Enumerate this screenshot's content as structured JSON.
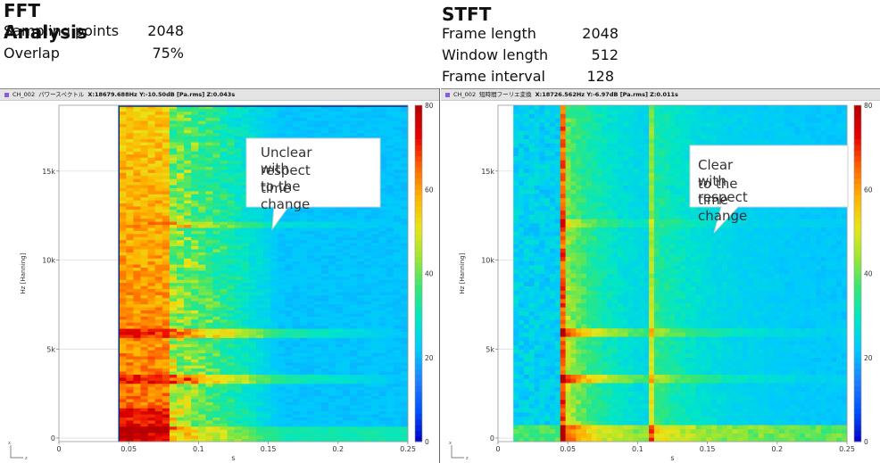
{
  "left_section": {
    "title": "FFT Analysis",
    "params": [
      {
        "label": "Sampling points",
        "value": "2048"
      },
      {
        "label": "Overlap",
        "value": "75%"
      }
    ]
  },
  "right_section": {
    "title": "STFT",
    "params": [
      {
        "label": "Frame length",
        "value": "2048"
      },
      {
        "label": "Window length",
        "value": "512"
      },
      {
        "label": "Frame interval",
        "value": "128"
      }
    ]
  },
  "panels": [
    {
      "channel": "CH_002",
      "analysis": "パワースペクトル",
      "cursor": "X:18679.688Hz Y:-10.50dB [Pa.rms] Z:0.043s",
      "callout": [
        "Unclear with",
        "respect to the",
        "time change"
      ]
    },
    {
      "channel": "CH_002",
      "analysis": "短時間フーリエ変換",
      "cursor": "X:18726.562Hz Y:-6.97dB [Pa.rms] Z:0.011s",
      "callout": [
        "Clear with respect",
        "to the time change"
      ]
    }
  ],
  "colors": {
    "header_bg": "#e4e4e4",
    "channel_marker": "#8a5cd6",
    "plot_background": "#1f7fff",
    "colormap": [
      "#0000c8",
      "#0050ff",
      "#1f7fff",
      "#00c8ff",
      "#00e6c8",
      "#32e678",
      "#9be632",
      "#e6e619",
      "#ffb400",
      "#ff6400",
      "#e60000",
      "#b40000"
    ]
  },
  "chart_data": [
    {
      "type": "heatmap",
      "method": "FFT (Hanning)",
      "xlabel": "s",
      "ylabel": "Hz [Hanning]",
      "zlabel": "",
      "x_ticks": [
        "0",
        "0.05",
        "0.1",
        "0.15",
        "0.2",
        "0.25"
      ],
      "y_ticks": [
        "0",
        "5k",
        "10k",
        "15k"
      ],
      "z_ticks": [
        "0",
        "20",
        "40",
        "60",
        "80"
      ],
      "xlim": [
        0,
        0.25
      ],
      "ylim": [
        -200,
        18700
      ],
      "zlim": [
        0,
        80
      ],
      "data_xlim": [
        0.043,
        0.25
      ],
      "legend": "colorbar-right",
      "strong_band_s": [
        0.043,
        0.08
      ],
      "resonance_lines_hz": [
        3400,
        5900,
        12000
      ],
      "decay_end_s": 0.16,
      "peak_level": 68,
      "background_level": 20
    },
    {
      "type": "heatmap",
      "method": "STFT (Hanning)",
      "xlabel": "s",
      "ylabel": "Hz [Hanning]",
      "zlabel": "",
      "x_ticks": [
        "0",
        "0.05",
        "0.1",
        "0.15",
        "0.2",
        "0.25"
      ],
      "y_ticks": [
        "0",
        "5k",
        "10k",
        "15k"
      ],
      "z_ticks": [
        "0",
        "20",
        "40",
        "60",
        "80"
      ],
      "xlim": [
        0,
        0.25
      ],
      "ylim": [
        -200,
        18700
      ],
      "zlim": [
        0,
        80
      ],
      "data_xlim": [
        0.011,
        0.25
      ],
      "legend": "colorbar-right",
      "impulse_times_s": [
        0.043,
        0.108
      ],
      "resonance_lines_hz": [
        3400,
        5900,
        12000
      ],
      "decay_end_s": 0.17,
      "peak_level": 72,
      "background_level": 20
    }
  ]
}
